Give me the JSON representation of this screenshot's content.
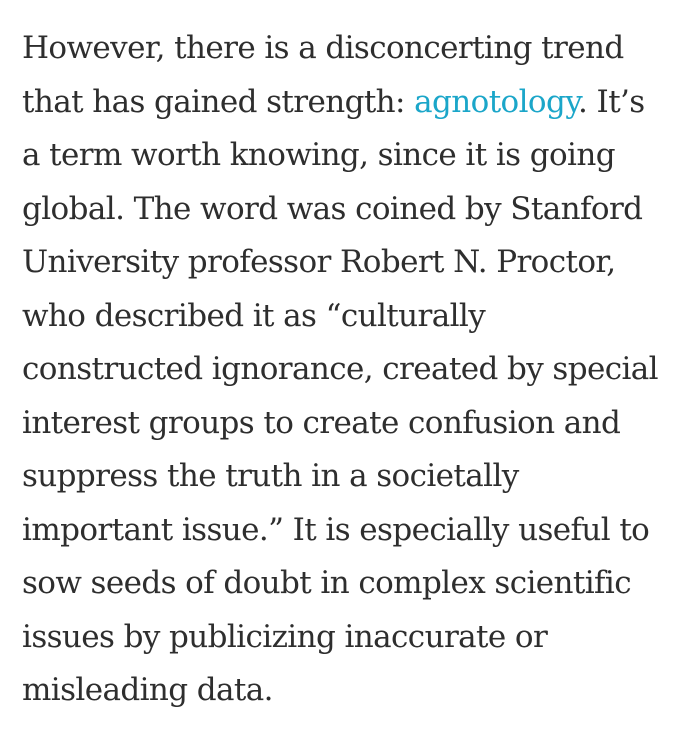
{
  "article": {
    "paragraph": {
      "line1": "However, there is a disconcerting trend",
      "line2_before": "that has gained strength: ",
      "link_text": "agnotology",
      "line2_after": ". It’s",
      "line3": "a term worth knowing, since it is going",
      "line4": "global. The word was coined by Stanford",
      "line5": "University professor Robert N. Proctor,",
      "line6": "who described it as “culturally",
      "line7": "constructed ignorance, created by special",
      "line8": "interest groups to create confusion and",
      "line9": "suppress the truth in a societally",
      "line10": "important issue.” It is especially useful to",
      "line11": "sow seeds of doubt in complex scientific",
      "line12": "issues by publicizing inaccurate or",
      "line13": "misleading data."
    },
    "link_color": "#1ba6c9",
    "text_color": "#2e2e2e"
  }
}
